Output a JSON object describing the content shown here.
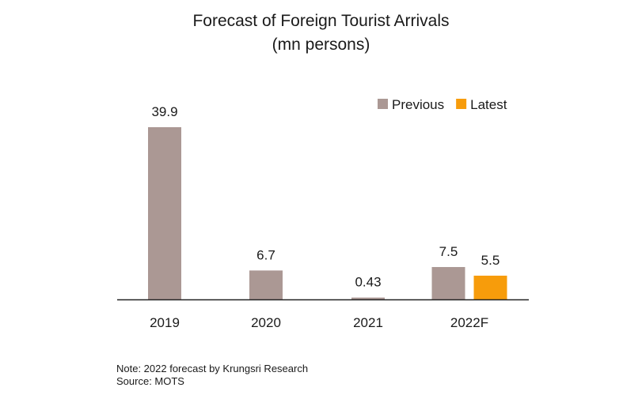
{
  "title": "Forecast of Foreign Tourist Arrivals",
  "subtitle": "(mn persons)",
  "note": "Note: 2022 forecast by Krungsri Research",
  "source": "Source: MOTS",
  "colors": {
    "previous": "#ab9894",
    "latest": "#f79c0b"
  },
  "chart_data": {
    "type": "bar",
    "title": "Forecast of Foreign Tourist Arrivals",
    "subtitle": "(mn persons)",
    "xlabel": "",
    "ylabel": "",
    "ylim": [
      0,
      40
    ],
    "grid": false,
    "legend": "top-right",
    "categories": [
      "2019",
      "2020",
      "2021",
      "2022F"
    ],
    "series": [
      {
        "name": "Previous",
        "values": [
          39.9,
          6.7,
          0.43,
          7.5
        ],
        "labels": [
          "39.9",
          "6.7",
          "0.43",
          "7.5"
        ]
      },
      {
        "name": "Latest",
        "values": [
          null,
          null,
          null,
          5.5
        ],
        "labels": [
          "",
          "",
          "",
          "5.5"
        ]
      }
    ]
  }
}
